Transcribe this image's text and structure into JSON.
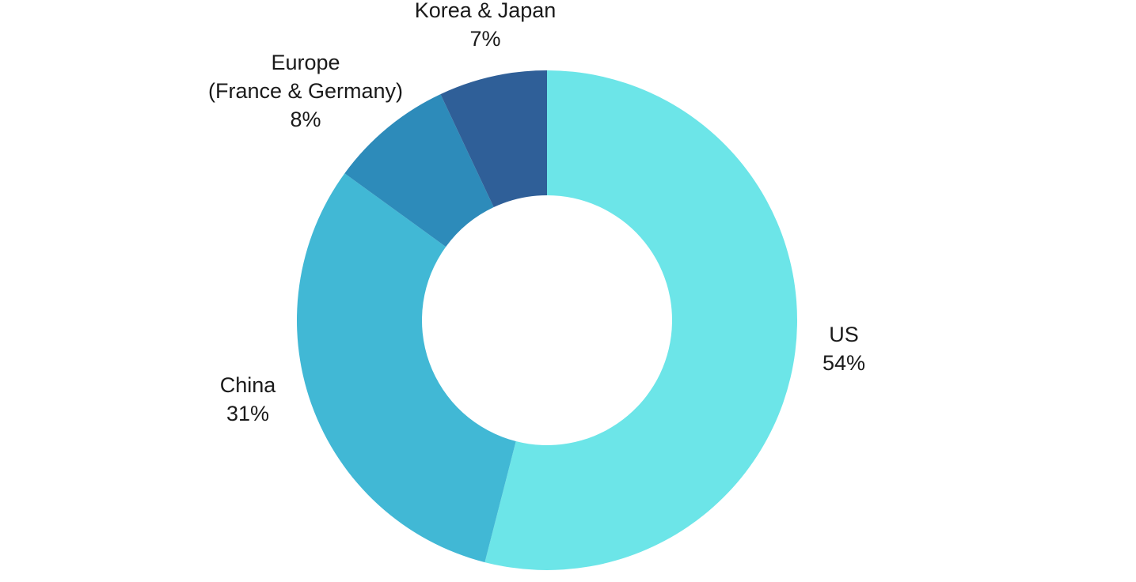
{
  "chart_data": {
    "type": "pie",
    "donut": true,
    "legend": "none",
    "slices": [
      {
        "label": "US",
        "value": 54,
        "value_label": "54%",
        "color": "#6ce5e8"
      },
      {
        "label": "China",
        "value": 31,
        "value_label": "31%",
        "color": "#41b8d5"
      },
      {
        "label": "Europe\n(France & Germany)",
        "value": 8,
        "value_label": "8%",
        "color": "#2d8bba"
      },
      {
        "label": "Korea & Japan",
        "value": 7,
        "value_label": "7%",
        "color": "#2f5f98"
      }
    ]
  }
}
